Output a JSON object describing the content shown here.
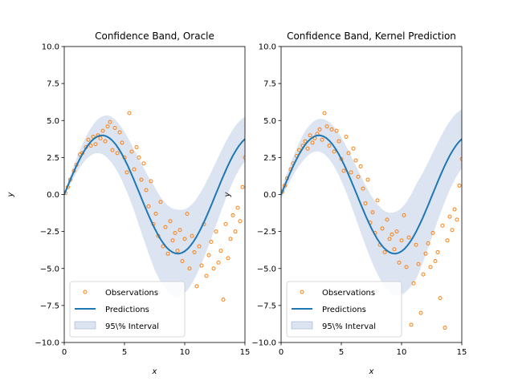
{
  "chart_data": [
    {
      "type": "scatter",
      "title": "Confidence Band, Oracle",
      "xlabel": "x",
      "ylabel": "y",
      "xlim": [
        0,
        15
      ],
      "ylim": [
        -10,
        10
      ],
      "xticks": [
        "0",
        "5",
        "10",
        "15"
      ],
      "yticks": [
        "−10.0",
        "−7.5",
        "−5.0",
        "−2.5",
        "0.0",
        "2.5",
        "5.0",
        "7.5",
        "10.0"
      ],
      "legend": {
        "placement": "lower-left",
        "entries": [
          "Observations",
          "Predictions",
          "95\\% Interval"
        ]
      },
      "colors": {
        "observations": "#ff7f0e",
        "predictions": "#1f77b4",
        "interval": "#b0c4de"
      },
      "series": [
        {
          "name": "Observations",
          "kind": "scatter",
          "x": [
            0.1,
            0.3,
            0.5,
            0.8,
            1.0,
            1.3,
            1.5,
            1.8,
            2.0,
            2.2,
            2.4,
            2.6,
            2.8,
            3.0,
            3.2,
            3.4,
            3.6,
            3.8,
            4.0,
            4.2,
            4.4,
            4.6,
            4.8,
            5.0,
            5.2,
            5.4,
            5.6,
            5.8,
            6.0,
            6.2,
            6.4,
            6.6,
            6.8,
            7.0,
            7.2,
            7.4,
            7.6,
            7.8,
            8.0,
            8.2,
            8.4,
            8.6,
            8.8,
            9.0,
            9.2,
            9.4,
            9.6,
            9.8,
            10.0,
            10.2,
            10.4,
            10.6,
            10.8,
            11.0,
            11.2,
            11.4,
            11.6,
            11.8,
            12.0,
            12.2,
            12.4,
            12.6,
            12.8,
            13.0,
            13.2,
            13.4,
            13.6,
            13.8,
            14.0,
            14.2,
            14.4,
            14.6,
            14.8,
            15.0
          ],
          "y": [
            0.1,
            0.5,
            1.0,
            1.6,
            2.0,
            2.7,
            2.8,
            3.2,
            3.7,
            3.3,
            3.9,
            3.4,
            4.0,
            3.8,
            4.3,
            3.6,
            4.6,
            4.9,
            3.0,
            4.5,
            2.8,
            4.2,
            3.5,
            2.5,
            1.5,
            5.5,
            2.9,
            1.7,
            3.2,
            2.5,
            1.0,
            2.1,
            0.3,
            -0.8,
            0.9,
            -2.0,
            -1.3,
            -2.8,
            -0.5,
            -3.5,
            -2.2,
            -4.0,
            -1.8,
            -3.1,
            -2.6,
            -3.8,
            -2.4,
            -4.5,
            -3.0,
            -1.3,
            -5.0,
            -2.8,
            -3.9,
            -6.2,
            -3.5,
            -4.8,
            -2.0,
            -5.5,
            -4.1,
            -3.2,
            -5.0,
            -2.5,
            -4.6,
            -3.8,
            -7.1,
            -2.0,
            -4.3,
            -3.0,
            -1.4,
            -2.5,
            -0.9,
            -1.8,
            0.5,
            2.5
          ]
        },
        {
          "name": "Predictions",
          "kind": "line",
          "function": "4*sin(x/2)",
          "x_step": 0.25
        },
        {
          "name": "95\\% Interval",
          "kind": "band",
          "half_width": [
            0.1,
            0.8,
            1.5,
            2.0,
            2.8,
            3.0,
            2.5,
            2.0,
            1.5
          ]
        }
      ]
    },
    {
      "type": "scatter",
      "title": "Confidence Band, Kernel Prediction",
      "xlabel": "x",
      "ylabel": "y",
      "xlim": [
        0,
        15
      ],
      "ylim": [
        -10,
        10
      ],
      "xticks": [
        "0",
        "5",
        "10",
        "15"
      ],
      "yticks": [
        "−10.0",
        "−7.5",
        "−5.0",
        "−2.5",
        "0.0",
        "2.5",
        "5.0",
        "7.5",
        "10.0"
      ],
      "legend": {
        "placement": "lower-left",
        "entries": [
          "Observations",
          "Predictions",
          "95\\% Interval"
        ]
      },
      "colors": {
        "observations": "#ff7f0e",
        "predictions": "#1f77b4",
        "interval": "#b0c4de"
      },
      "series": [
        {
          "name": "Observations",
          "kind": "scatter",
          "x": [
            0.1,
            0.3,
            0.5,
            0.8,
            1.0,
            1.3,
            1.5,
            1.8,
            2.0,
            2.2,
            2.4,
            2.6,
            2.8,
            3.0,
            3.2,
            3.4,
            3.6,
            3.8,
            4.0,
            4.2,
            4.4,
            4.6,
            4.8,
            5.0,
            5.2,
            5.4,
            5.6,
            5.8,
            6.0,
            6.2,
            6.4,
            6.6,
            6.8,
            7.0,
            7.2,
            7.4,
            7.6,
            7.8,
            8.0,
            8.2,
            8.4,
            8.6,
            8.8,
            9.0,
            9.2,
            9.4,
            9.6,
            9.8,
            10.0,
            10.2,
            10.4,
            10.6,
            10.8,
            11.0,
            11.2,
            11.4,
            11.6,
            11.8,
            12.0,
            12.2,
            12.4,
            12.6,
            12.8,
            13.0,
            13.2,
            13.4,
            13.6,
            13.8,
            14.0,
            14.2,
            14.4,
            14.6,
            14.8,
            15.0
          ],
          "y": [
            0.2,
            0.6,
            1.1,
            1.7,
            2.1,
            2.6,
            3.0,
            3.3,
            3.6,
            3.1,
            4.0,
            3.5,
            3.8,
            4.1,
            4.4,
            3.7,
            5.5,
            4.6,
            3.3,
            4.4,
            2.9,
            4.3,
            3.6,
            2.4,
            1.6,
            3.9,
            2.8,
            1.5,
            3.1,
            2.3,
            1.2,
            1.9,
            0.4,
            -0.6,
            1.0,
            -1.9,
            -1.2,
            -2.6,
            -0.4,
            -3.4,
            -2.3,
            -3.9,
            -1.7,
            -3.0,
            -2.7,
            -3.7,
            -2.5,
            -4.6,
            -3.1,
            -1.4,
            -4.9,
            -2.9,
            -8.8,
            -6.0,
            -3.4,
            -4.7,
            -8.0,
            -5.4,
            -4.0,
            -3.3,
            -4.9,
            -2.6,
            -4.5,
            -3.9,
            -7.0,
            -2.1,
            -9.0,
            -3.1,
            -1.5,
            -2.4,
            -1.0,
            -1.7,
            0.6,
            2.4
          ]
        },
        {
          "name": "Predictions",
          "kind": "line",
          "function": "4*sin(x/2)",
          "x_step": 0.25
        },
        {
          "name": "95\\% Interval",
          "kind": "band",
          "half_width": [
            0.3,
            0.9,
            1.2,
            1.6,
            2.2,
            2.8,
            3.2,
            2.6,
            2.0
          ]
        }
      ]
    }
  ]
}
